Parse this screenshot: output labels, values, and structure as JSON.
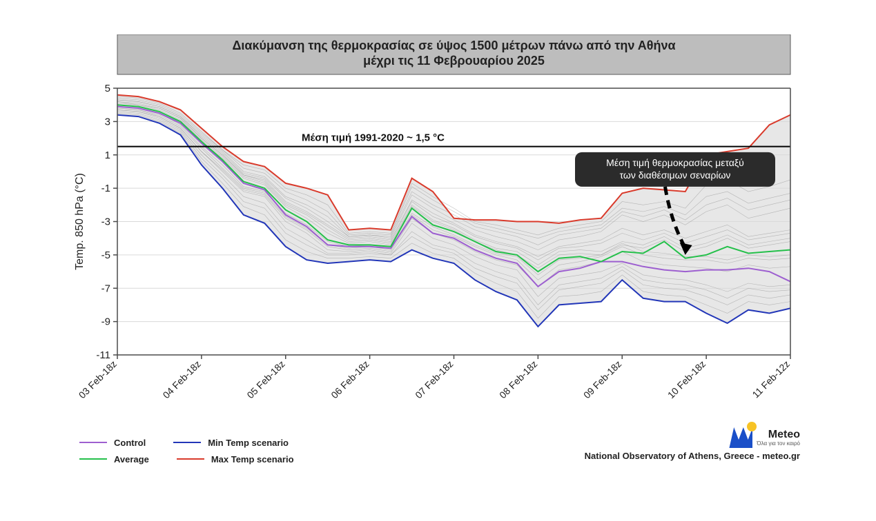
{
  "chart": {
    "type": "line-ensemble",
    "title_line1": "Διακύμανση της θερμοκρασίας σε ύψος 1500 μέτρων πάνω από την Αθήνα",
    "title_line2": "μέχρι τις 11 Φεβρουαρίου 2025",
    "title_fontsize": 18,
    "title_bg": "#bdbdbd",
    "title_border": "#5a5a5a",
    "ylabel": "Temp. 850 hPa (°C)",
    "ylabel_fontsize": 16,
    "background_color": "#ffffff",
    "plot_bg": "#ffffff",
    "grid_color": "#d9d9d9",
    "axis_color": "#4a4a4a",
    "ylim": [
      -11,
      5
    ],
    "ytick_step": 2,
    "yticks": [
      5,
      3,
      1,
      -1,
      -3,
      -5,
      -7,
      -9,
      -11
    ],
    "x_categories": [
      "03 Feb-18z",
      "04 Feb-18z",
      "05 Feb-18z",
      "06 Feb-18z",
      "07 Feb-18z",
      "08 Feb-18z",
      "09 Feb-18z",
      "10 Feb-18z",
      "11 Feb-12z"
    ],
    "n_x_points": 33,
    "series": {
      "max": {
        "color": "#d93a2b",
        "width": 2,
        "y": [
          4.6,
          4.5,
          4.2,
          3.7,
          2.6,
          1.5,
          0.6,
          0.3,
          -0.7,
          -1.0,
          -1.4,
          -3.5,
          -3.4,
          -3.5,
          -0.4,
          -1.2,
          -2.8,
          -2.9,
          -2.9,
          -3.0,
          -3.0,
          -3.1,
          -2.9,
          -2.8,
          -1.3,
          -1.0,
          -1.1,
          -1.2,
          1.0,
          1.2,
          1.4,
          2.8,
          3.4
        ]
      },
      "min": {
        "color": "#2236b8",
        "width": 2,
        "y": [
          3.4,
          3.3,
          2.9,
          2.2,
          0.4,
          -1.0,
          -2.6,
          -3.1,
          -4.5,
          -5.3,
          -5.5,
          -5.4,
          -5.3,
          -5.4,
          -4.7,
          -5.2,
          -5.5,
          -6.5,
          -7.2,
          -7.7,
          -9.3,
          -8.0,
          -7.9,
          -7.8,
          -6.5,
          -7.6,
          -7.8,
          -7.8,
          -8.5,
          -9.1,
          -8.3,
          -8.5,
          -8.2
        ]
      },
      "control": {
        "color": "#9d5fd0",
        "width": 2,
        "y": [
          3.9,
          3.8,
          3.5,
          2.9,
          1.7,
          0.6,
          -0.7,
          -1.1,
          -2.6,
          -3.3,
          -4.4,
          -4.5,
          -4.5,
          -4.6,
          -2.7,
          -3.7,
          -4.0,
          -4.7,
          -5.2,
          -5.5,
          -6.9,
          -6.0,
          -5.8,
          -5.4,
          -5.4,
          -5.7,
          -5.9,
          -6.0,
          -5.9,
          -5.9,
          -5.8,
          -6.0,
          -6.6
        ]
      },
      "average": {
        "color": "#24c04a",
        "width": 2,
        "y": [
          4.0,
          3.9,
          3.6,
          3.0,
          1.8,
          0.7,
          -0.6,
          -1.0,
          -2.3,
          -3.0,
          -4.1,
          -4.4,
          -4.4,
          -4.5,
          -2.2,
          -3.2,
          -3.6,
          -4.2,
          -4.8,
          -5.0,
          -6.0,
          -5.2,
          -5.1,
          -5.4,
          -4.8,
          -4.9,
          -4.2,
          -5.2,
          -5.0,
          -4.5,
          -4.9,
          -4.8,
          -4.7
        ]
      }
    },
    "ensemble_members": {
      "color": "#8a8a8a",
      "width": 0.6,
      "opacity": 0.55,
      "lines": [
        [
          4.2,
          4.0,
          3.8,
          3.2,
          2.0,
          1.0,
          -0.2,
          -0.5,
          -1.8,
          -2.4,
          -3.2,
          -4.0,
          -3.9,
          -4.1,
          -1.7,
          -2.5,
          -3.1,
          -3.8,
          -4.2,
          -4.5,
          -5.1,
          -4.5,
          -4.3,
          -4.1,
          -3.4,
          -3.8,
          -3.5,
          -4.0,
          -3.6,
          -3.2,
          -3.9,
          -3.7,
          -3.5
        ],
        [
          3.7,
          3.6,
          3.3,
          2.6,
          1.2,
          0.0,
          -1.2,
          -1.5,
          -3.0,
          -3.7,
          -4.7,
          -4.8,
          -4.7,
          -4.9,
          -3.1,
          -4.0,
          -4.4,
          -5.1,
          -5.6,
          -5.9,
          -7.5,
          -6.4,
          -6.2,
          -6.0,
          -5.5,
          -6.2,
          -6.4,
          -6.5,
          -6.8,
          -7.2,
          -6.7,
          -6.9,
          -6.8
        ],
        [
          4.3,
          4.2,
          3.9,
          3.3,
          2.1,
          1.1,
          -0.1,
          -0.4,
          -1.6,
          -2.2,
          -3.0,
          -3.9,
          -3.8,
          -4.0,
          -1.4,
          -2.2,
          -2.9,
          -3.5,
          -3.9,
          -4.2,
          -4.7,
          -4.1,
          -3.9,
          -3.6,
          -2.6,
          -3.0,
          -2.6,
          -3.2,
          -2.4,
          -2.0,
          -2.8,
          -2.5,
          -2.2
        ],
        [
          3.6,
          3.5,
          3.1,
          2.4,
          0.8,
          -0.4,
          -1.8,
          -2.2,
          -3.7,
          -4.4,
          -5.0,
          -5.0,
          -4.9,
          -5.0,
          -3.9,
          -4.6,
          -4.9,
          -5.8,
          -6.3,
          -6.7,
          -8.3,
          -7.1,
          -6.9,
          -6.7,
          -5.9,
          -6.8,
          -7.0,
          -7.1,
          -7.5,
          -8.0,
          -7.4,
          -7.6,
          -7.4
        ],
        [
          4.1,
          4.0,
          3.7,
          3.1,
          1.9,
          0.9,
          -0.3,
          -0.7,
          -2.0,
          -2.6,
          -3.5,
          -4.2,
          -4.1,
          -4.3,
          -2.0,
          -2.9,
          -3.4,
          -4.1,
          -4.6,
          -4.8,
          -5.6,
          -4.8,
          -4.7,
          -4.8,
          -4.2,
          -4.4,
          -3.9,
          -4.6,
          -4.3,
          -3.8,
          -4.4,
          -4.2,
          -4.0
        ],
        [
          3.8,
          3.7,
          3.4,
          2.7,
          1.4,
          0.2,
          -1.0,
          -1.3,
          -2.7,
          -3.4,
          -4.4,
          -4.6,
          -4.5,
          -4.7,
          -2.6,
          -3.5,
          -3.9,
          -4.5,
          -5.0,
          -5.3,
          -6.5,
          -5.6,
          -5.4,
          -5.1,
          -4.5,
          -5.0,
          -5.2,
          -5.3,
          -5.3,
          -5.5,
          -5.2,
          -5.3,
          -5.2
        ],
        [
          4.4,
          4.3,
          4.0,
          3.4,
          2.3,
          1.3,
          0.2,
          -0.1,
          -1.2,
          -1.7,
          -2.4,
          -3.8,
          -3.7,
          -3.8,
          -0.9,
          -1.7,
          -2.4,
          -3.1,
          -3.4,
          -3.7,
          -4.0,
          -3.6,
          -3.4,
          -3.2,
          -2.2,
          -2.4,
          -2.1,
          -2.6,
          -1.5,
          -1.2,
          -1.9,
          -1.6,
          -1.3
        ],
        [
          3.5,
          3.4,
          3.0,
          2.3,
          0.6,
          -0.7,
          -2.1,
          -2.6,
          -4.1,
          -4.8,
          -5.2,
          -5.2,
          -5.1,
          -5.2,
          -4.3,
          -4.9,
          -5.2,
          -6.1,
          -6.7,
          -7.2,
          -8.8,
          -7.5,
          -7.4,
          -7.2,
          -6.2,
          -7.2,
          -7.4,
          -7.5,
          -8.0,
          -8.5,
          -7.8,
          -8.0,
          -7.8
        ],
        [
          4.0,
          3.9,
          3.6,
          3.0,
          1.8,
          0.8,
          -0.4,
          -0.8,
          -2.1,
          -2.8,
          -3.7,
          -4.3,
          -4.2,
          -4.4,
          -2.1,
          -3.0,
          -3.5,
          -4.2,
          -4.7,
          -5.0,
          -5.8,
          -5.0,
          -4.9,
          -5.0,
          -4.4,
          -4.6,
          -4.1,
          -4.8,
          -4.5,
          -4.0,
          -4.6,
          -4.4,
          -4.2
        ],
        [
          3.9,
          3.8,
          3.5,
          2.8,
          1.5,
          0.4,
          -0.9,
          -1.2,
          -2.5,
          -3.2,
          -4.2,
          -4.5,
          -4.4,
          -4.6,
          -2.5,
          -3.3,
          -3.8,
          -4.4,
          -4.9,
          -5.1,
          -6.2,
          -5.3,
          -5.2,
          -5.0,
          -4.3,
          -4.8,
          -4.9,
          -5.1,
          -5.1,
          -5.3,
          -5.0,
          -5.1,
          -5.0
        ],
        [
          4.5,
          4.4,
          4.1,
          3.5,
          2.4,
          1.3,
          0.4,
          0.1,
          -1.0,
          -1.4,
          -2.0,
          -3.7,
          -3.6,
          -3.7,
          -0.7,
          -1.5,
          -2.2,
          -3.0,
          -3.2,
          -3.5,
          -3.8,
          -3.4,
          -3.2,
          -3.0,
          -1.8,
          -2.0,
          -1.8,
          -2.2,
          -0.8,
          -0.5,
          -1.2,
          -0.9,
          -0.5
        ],
        [
          3.7,
          3.6,
          3.2,
          2.5,
          1.0,
          -0.2,
          -1.5,
          -1.9,
          -3.4,
          -4.1,
          -4.9,
          -4.9,
          -4.8,
          -5.0,
          -3.6,
          -4.4,
          -4.7,
          -5.5,
          -6.0,
          -6.4,
          -8.0,
          -6.8,
          -6.6,
          -6.4,
          -5.7,
          -6.5,
          -6.7,
          -6.8,
          -7.1,
          -7.6,
          -7.0,
          -7.2,
          -7.1
        ],
        [
          4.2,
          4.1,
          3.8,
          3.2,
          2.0,
          1.0,
          -0.2,
          -0.6,
          -1.9,
          -2.5,
          -3.3,
          -4.1,
          -4.0,
          -4.2,
          -1.8,
          -2.7,
          -3.2,
          -3.9,
          -4.3,
          -4.6,
          -5.3,
          -4.6,
          -4.5,
          -4.3,
          -3.7,
          -4.1,
          -3.7,
          -4.3,
          -3.9,
          -3.5,
          -4.1,
          -3.9,
          -3.7
        ],
        [
          3.8,
          3.7,
          3.3,
          2.6,
          1.2,
          0.1,
          -1.1,
          -1.4,
          -2.8,
          -3.5,
          -4.5,
          -4.7,
          -4.6,
          -4.8,
          -2.8,
          -3.7,
          -4.1,
          -4.8,
          -5.3,
          -5.6,
          -6.9,
          -5.9,
          -5.7,
          -5.4,
          -4.8,
          -5.4,
          -5.6,
          -5.7,
          -5.8,
          -6.0,
          -5.6,
          -5.8,
          -5.7
        ],
        [
          4.3,
          4.2,
          3.9,
          3.3,
          2.2,
          1.2,
          0.0,
          -0.3,
          -1.5,
          -2.0,
          -2.7,
          -3.9,
          -3.8,
          -3.9,
          -1.2,
          -2.0,
          -2.6,
          -3.3,
          -3.6,
          -3.9,
          -4.4,
          -3.8,
          -3.6,
          -3.4,
          -2.4,
          -2.7,
          -2.3,
          -2.9,
          -2.0,
          -1.6,
          -2.3,
          -2.0,
          -1.7
        ]
      ]
    },
    "envelope_fill": "#e7e7e7",
    "reference_line": {
      "value": 1.5,
      "label": "Μέση τιμή 1991-2020 ~ 1,5 °C",
      "color": "#000000",
      "width": 2
    },
    "annotation": {
      "line1": "Μέση τιμή θερμοκρασίας μεταξύ",
      "line2": "των διαθέσιμων σεναρίων",
      "box_bg": "#2b2b2b",
      "text_color": "#ffffff",
      "arrow_color": "#000000",
      "target_x_index": 27,
      "target_y": -5.0
    }
  },
  "legend": {
    "items": [
      {
        "label": "Control",
        "color": "#9d5fd0"
      },
      {
        "label": "Average",
        "color": "#24c04a"
      },
      {
        "label": "Min Temp scenario",
        "color": "#2236b8"
      },
      {
        "label": "Max Temp scenario",
        "color": "#d93a2b"
      }
    ]
  },
  "attribution": {
    "logo_brand": "Meteo",
    "logo_tagline": "Όλα για τον καιρό",
    "text": "National Observatory of Athens, Greece - meteo.gr",
    "logo_m_color": "#1a4fc8",
    "logo_sun_color": "#f7c325"
  }
}
